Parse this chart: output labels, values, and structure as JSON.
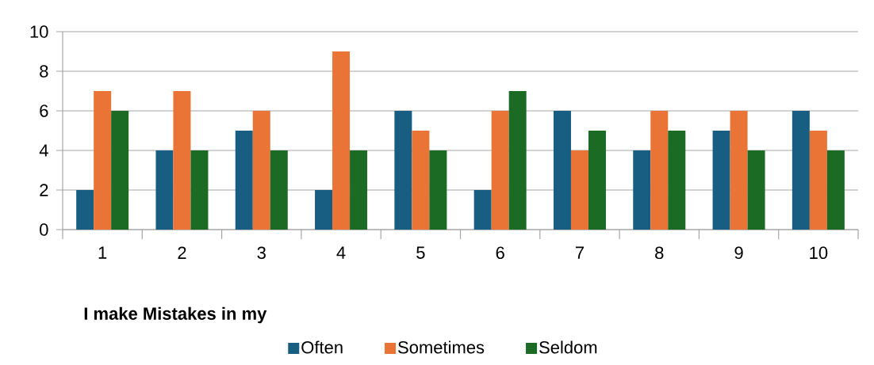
{
  "chart_data": {
    "type": "bar",
    "categories": [
      "1",
      "2",
      "3",
      "4",
      "5",
      "6",
      "7",
      "8",
      "9",
      "10"
    ],
    "series": [
      {
        "name": "Often",
        "color": "#175e82",
        "values": [
          2,
          4,
          5,
          2,
          6,
          2,
          6,
          4,
          5,
          6
        ]
      },
      {
        "name": "Sometimes",
        "color": "#e97435",
        "values": [
          7,
          7,
          6,
          9,
          5,
          6,
          4,
          6,
          6,
          5
        ]
      },
      {
        "name": "Seldom",
        "color": "#1b6b25",
        "values": [
          6,
          4,
          4,
          4,
          4,
          7,
          5,
          5,
          4,
          4
        ]
      }
    ],
    "ylim": [
      0,
      10
    ],
    "yticks": [
      0,
      2,
      4,
      6,
      8,
      10
    ],
    "grid": "y",
    "legend": "bottom",
    "legend_title": "I make Mistakes in my"
  }
}
